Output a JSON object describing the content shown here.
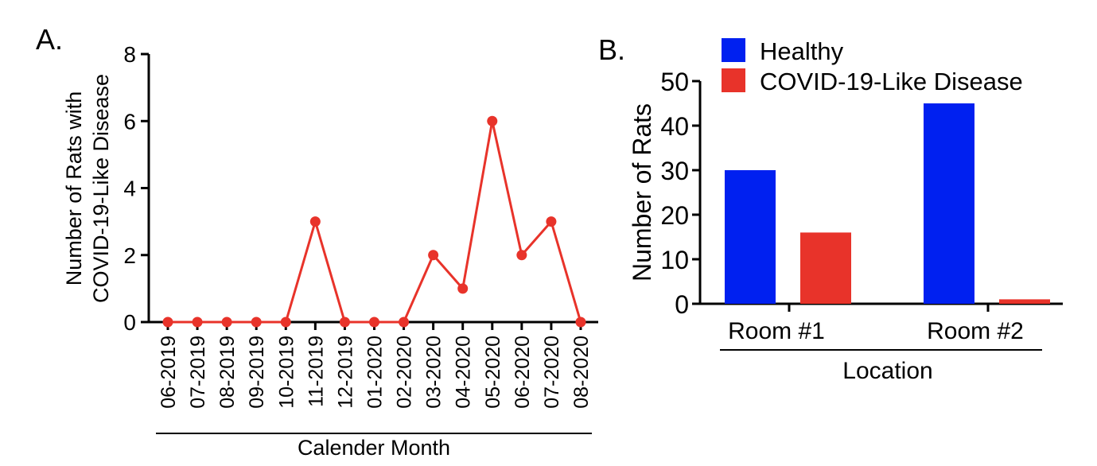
{
  "chart_data": [
    {
      "panel_label": "A.",
      "type": "line",
      "xlabel": "Calender Month",
      "ylabel_lines": [
        "Number of Rats with",
        "COVID-19-Like Disease"
      ],
      "categories": [
        "06-2019",
        "07-2019",
        "08-2019",
        "09-2019",
        "10-2019",
        "11-2019",
        "12-2019",
        "01-2020",
        "02-2020",
        "03-2020",
        "04-2020",
        "05-2020",
        "06-2020",
        "07-2020",
        "08-2020"
      ],
      "values": [
        0,
        0,
        0,
        0,
        0,
        3,
        0,
        0,
        0,
        2,
        1,
        6,
        2,
        3,
        0
      ],
      "ylim": [
        0,
        8
      ],
      "yticks": [
        0,
        2,
        4,
        6,
        8
      ],
      "color": "#e8332a",
      "grid": false
    },
    {
      "panel_label": "B.",
      "type": "bar",
      "xlabel": "Location",
      "ylabel": "Number of Rats",
      "categories": [
        "Room #1",
        "Room #2"
      ],
      "series": [
        {
          "name": "Healthy",
          "values": [
            30,
            45
          ],
          "color": "#0020f0"
        },
        {
          "name": "COVID-19-Like Disease",
          "values": [
            16,
            1
          ],
          "color": "#e8332a"
        }
      ],
      "ylim": [
        0,
        50
      ],
      "yticks": [
        0,
        10,
        20,
        30,
        40,
        50
      ],
      "legend": "top",
      "grid": false
    }
  ]
}
